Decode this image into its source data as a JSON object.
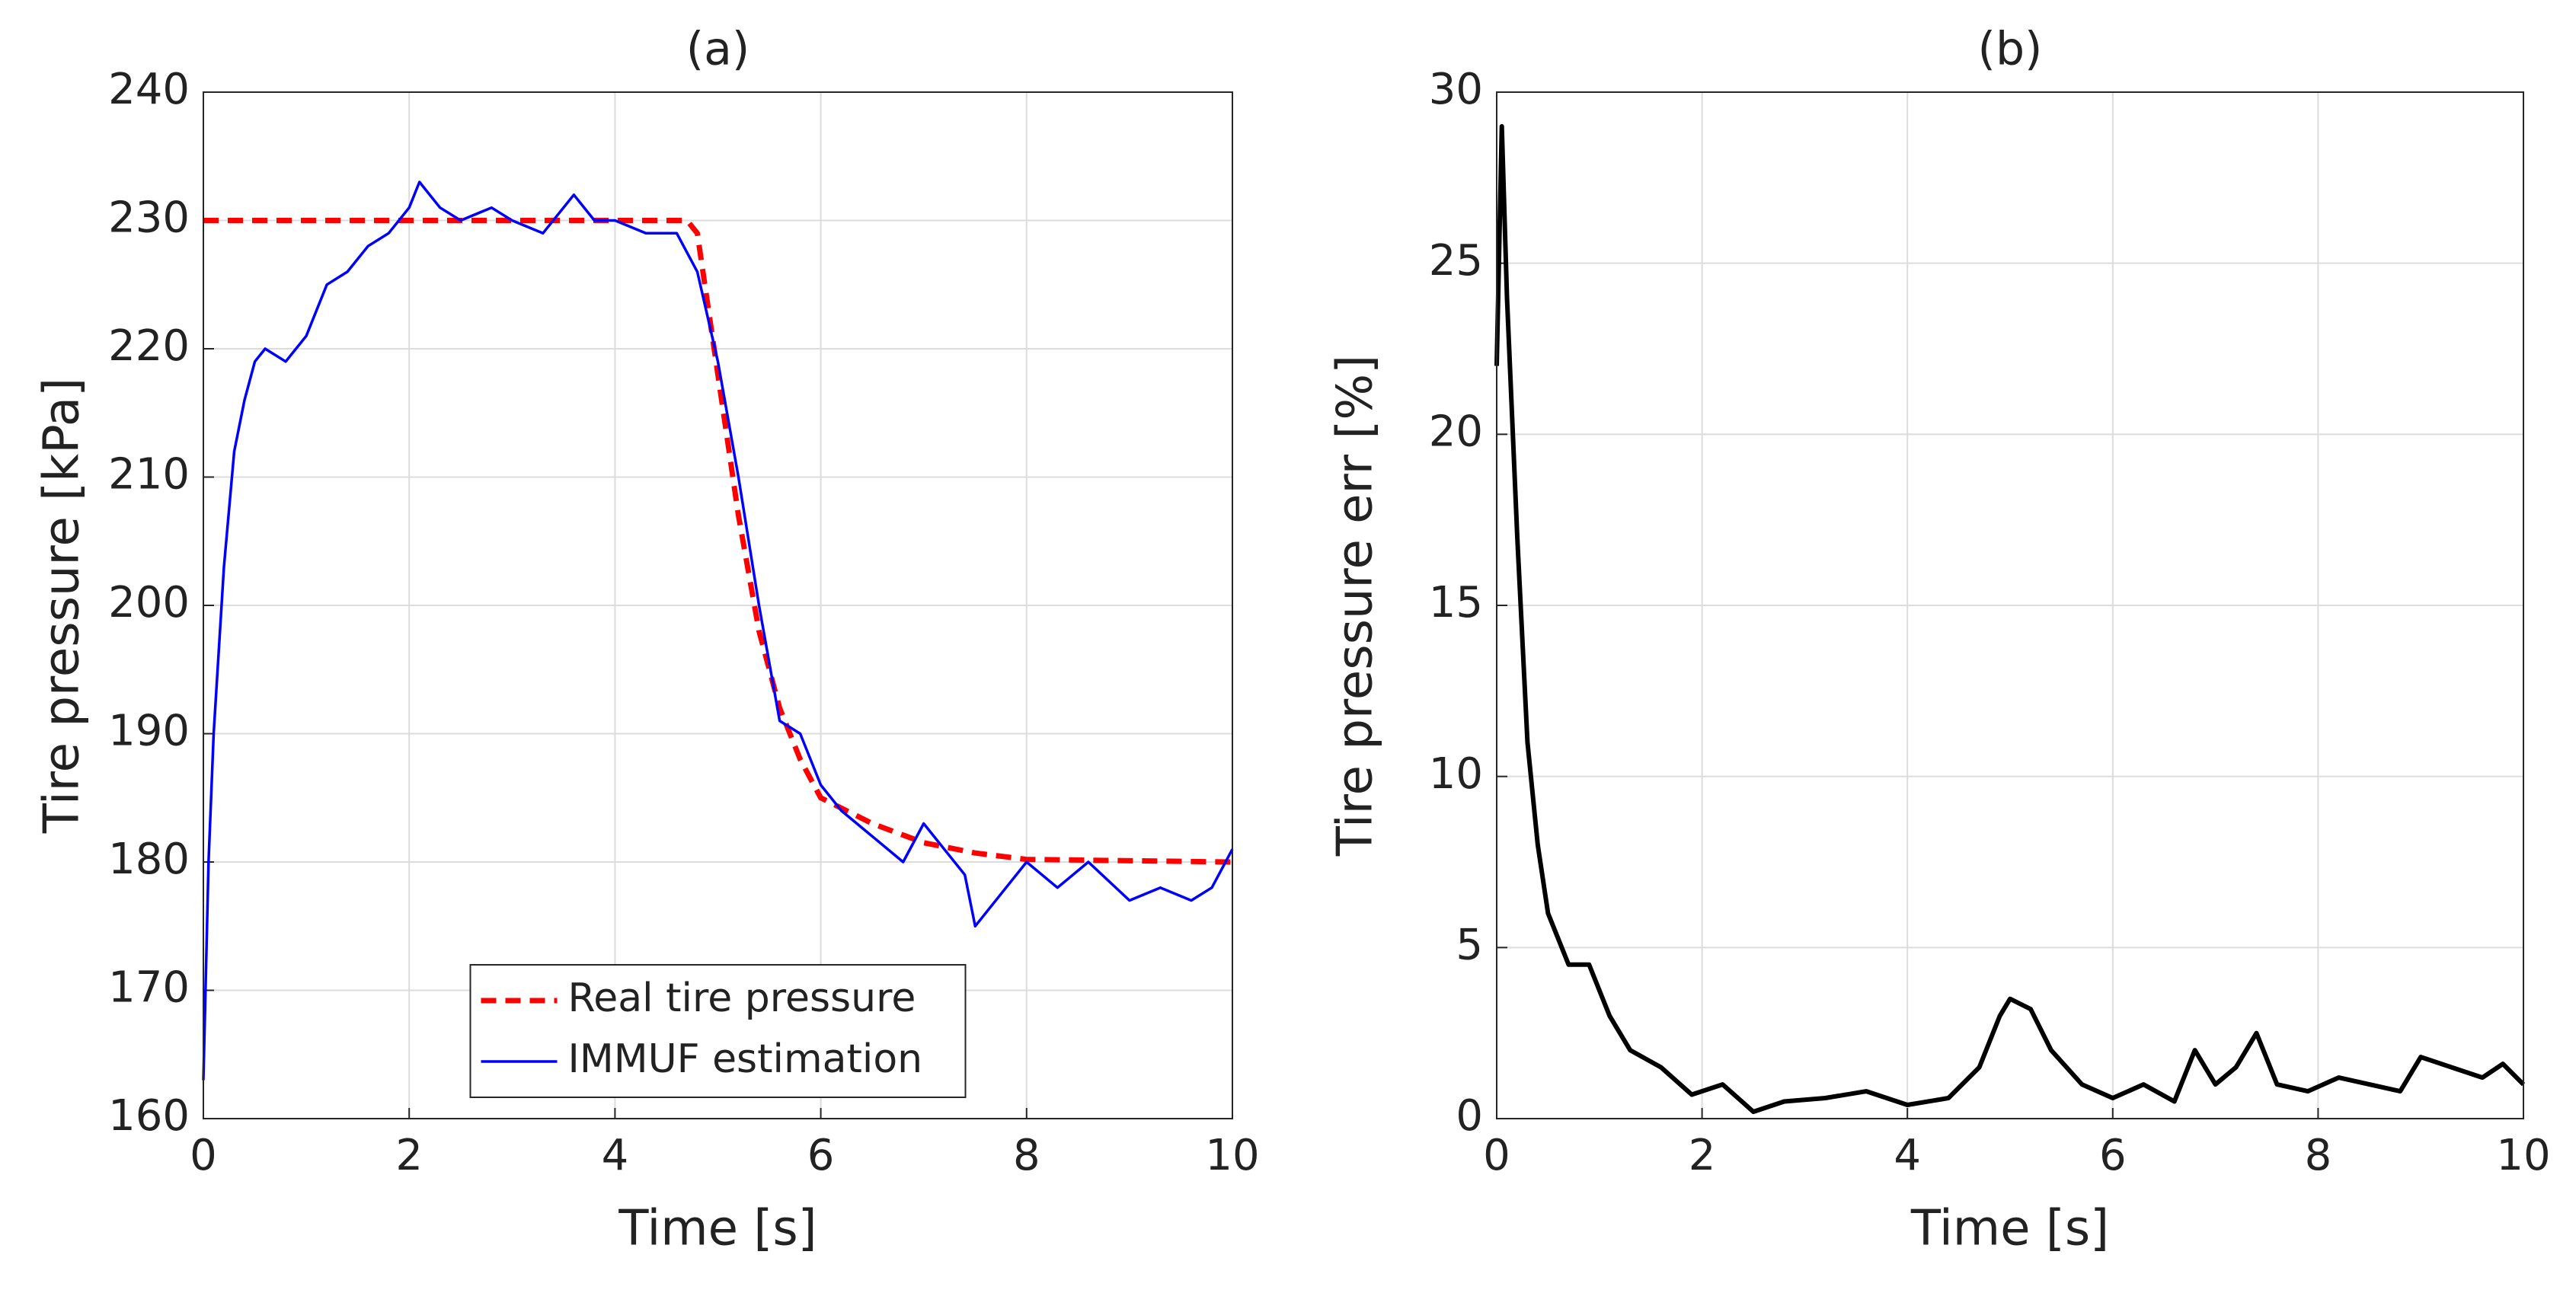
{
  "chart_data": [
    {
      "type": "line",
      "title": "(a)",
      "x_label": "Time [s]",
      "y_label": "Tire pressure [kPa]",
      "xlim": [
        0,
        10
      ],
      "ylim": [
        160,
        240
      ],
      "xticks": [
        0,
        2,
        4,
        6,
        8,
        10
      ],
      "yticks": [
        160,
        170,
        180,
        190,
        200,
        210,
        220,
        230,
        240
      ],
      "grid": true,
      "legend": "lower center",
      "series": [
        {
          "name": "Real tire pressure",
          "color": "#ff0000",
          "line_style": "dashed",
          "x": [
            0,
            4.7,
            4.8,
            5,
            5.2,
            5.4,
            5.6,
            5.8,
            6,
            6.5,
            7,
            7.5,
            8,
            10
          ],
          "values": [
            230,
            230,
            229,
            218,
            207,
            198,
            192,
            188,
            185,
            183,
            181.5,
            180.7,
            180.2,
            180
          ]
        },
        {
          "name": "IMMUF estimation",
          "color": "#0000ff",
          "line_style": "solid",
          "x": [
            0,
            0.05,
            0.1,
            0.2,
            0.3,
            0.4,
            0.5,
            0.6,
            0.8,
            1.0,
            1.2,
            1.4,
            1.6,
            1.8,
            2.0,
            2.1,
            2.3,
            2.5,
            2.8,
            3.0,
            3.3,
            3.6,
            3.8,
            4.0,
            4.3,
            4.6,
            4.8,
            5.0,
            5.2,
            5.4,
            5.6,
            5.8,
            6.0,
            6.2,
            6.5,
            6.8,
            7.0,
            7.2,
            7.4,
            7.5,
            7.8,
            8.0,
            8.3,
            8.6,
            9.0,
            9.3,
            9.6,
            9.8,
            10
          ],
          "values": [
            163,
            180,
            190,
            203,
            212,
            216,
            219,
            220,
            219,
            221,
            225,
            226,
            228,
            229,
            231,
            233,
            231,
            230,
            231,
            230,
            229,
            232,
            230,
            230,
            229,
            229,
            226,
            219,
            210,
            200,
            191,
            190,
            186,
            184,
            182,
            180,
            183,
            181,
            179,
            175,
            178,
            180,
            178,
            180,
            177,
            178,
            177,
            178,
            181
          ]
        }
      ]
    },
    {
      "type": "line",
      "title": "(b)",
      "x_label": "Time [s]",
      "y_label": "Tire pressure err [%]",
      "xlim": [
        0,
        10
      ],
      "ylim": [
        0,
        30
      ],
      "xticks": [
        0,
        2,
        4,
        6,
        8,
        10
      ],
      "yticks": [
        0,
        5,
        10,
        15,
        20,
        25,
        30
      ],
      "grid": true,
      "series": [
        {
          "color": "#000000",
          "line_style": "solid",
          "x": [
            0,
            0.05,
            0.1,
            0.2,
            0.3,
            0.4,
            0.5,
            0.7,
            0.9,
            1.1,
            1.3,
            1.6,
            1.9,
            2.2,
            2.5,
            2.8,
            3.2,
            3.6,
            4.0,
            4.4,
            4.7,
            4.9,
            5.0,
            5.2,
            5.4,
            5.7,
            6.0,
            6.3,
            6.6,
            6.8,
            7.0,
            7.2,
            7.4,
            7.6,
            7.9,
            8.2,
            8.5,
            8.8,
            9.0,
            9.3,
            9.6,
            9.8,
            10
          ],
          "values": [
            22,
            29,
            24,
            17,
            11,
            8,
            6,
            4.5,
            4.5,
            3,
            2,
            1.5,
            0.7,
            1,
            0.2,
            0.5,
            0.6,
            0.8,
            0.4,
            0.6,
            1.5,
            3,
            3.5,
            3.2,
            2,
            1,
            0.6,
            1,
            0.5,
            2,
            1,
            1.5,
            2.5,
            1,
            0.8,
            1.2,
            1,
            0.8,
            1.8,
            1.5,
            1.2,
            1.6,
            1
          ]
        }
      ]
    }
  ]
}
